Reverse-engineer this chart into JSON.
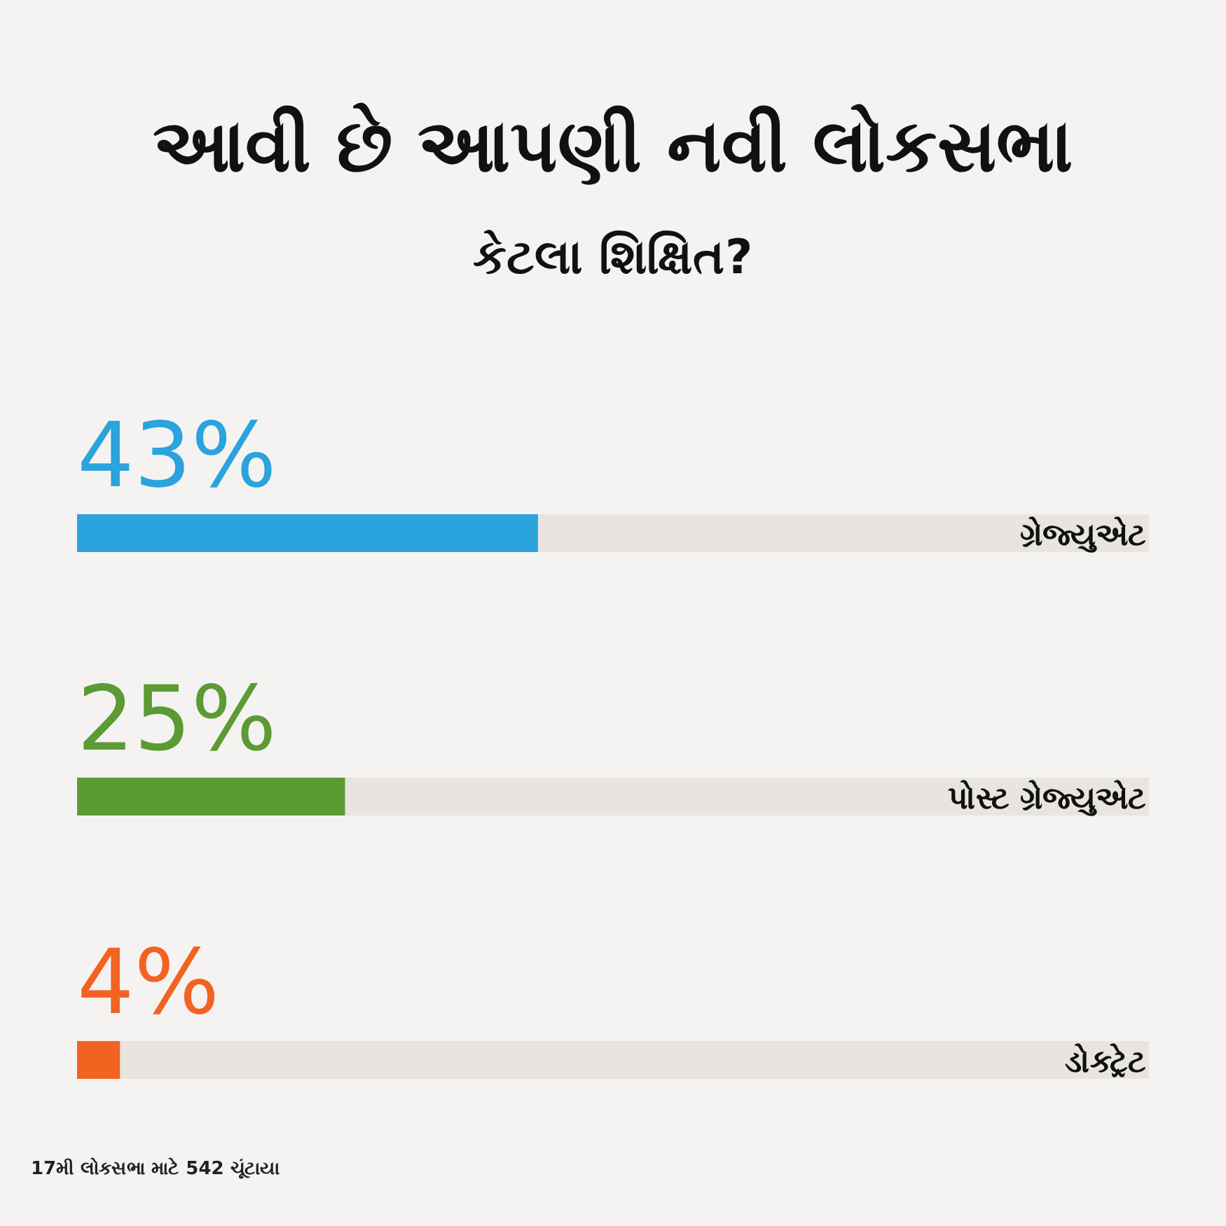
{
  "chart_data": {
    "type": "bar",
    "orientation": "horizontal",
    "title": "આવી છે આપણી નવી લોકસભા",
    "subtitle": "કેટલા શિક્ષિત?",
    "categories": [
      "ગ્રેજ્યુએટ",
      "પોસ્ટ ગ્રેજ્યુએટ",
      "ડોક્ટ્રેટ"
    ],
    "values": [
      43,
      25,
      4
    ],
    "colors": [
      "#2ba3dc",
      "#5c9a34",
      "#f26322"
    ],
    "value_labels": [
      "43%",
      "25%",
      "4%"
    ],
    "xlim": [
      0,
      100
    ],
    "tick_labels": "y",
    "annotations": [
      "17મી લોકસભા માટે 542 ચૂંટાયા"
    ]
  }
}
